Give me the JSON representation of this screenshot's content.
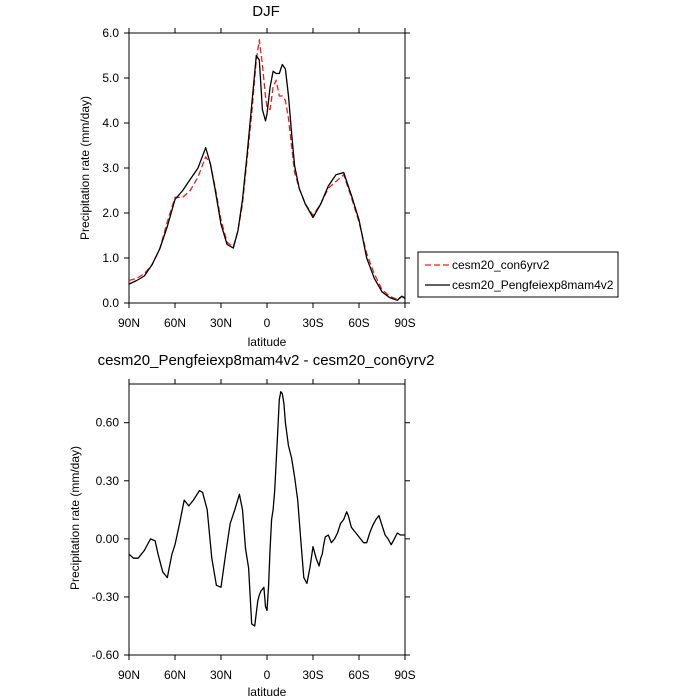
{
  "chart_data": [
    {
      "type": "line",
      "title": "DJF",
      "xlabel": "latitude",
      "ylabel": "Precipitation rate (mm/day)",
      "xlim": [
        90,
        -90
      ],
      "ylim": [
        0,
        6
      ],
      "x_ticks": [
        90,
        60,
        30,
        0,
        -30,
        -60,
        -90
      ],
      "x_tick_labels": [
        "90N",
        "60N",
        "30N",
        "0",
        "30S",
        "60S",
        "90S"
      ],
      "y_ticks": [
        0,
        1,
        2,
        3,
        4,
        5,
        6
      ],
      "y_tick_labels": [
        "0.0",
        "1.0",
        "2.0",
        "3.0",
        "4.0",
        "5.0",
        "6.0"
      ],
      "grid": false,
      "legend_position": "right",
      "series": [
        {
          "name": "cesm20_con6yrv2",
          "color": "#e8201c",
          "dash": "dashed",
          "x": [
            90,
            85,
            80,
            75,
            70,
            65,
            60,
            55,
            50,
            45,
            40,
            37,
            34,
            30,
            26,
            22,
            19,
            16,
            13,
            10,
            7,
            5,
            3,
            1,
            0,
            -2,
            -4,
            -6,
            -8,
            -10,
            -12,
            -14,
            -16,
            -18,
            -21,
            -25,
            -30,
            -35,
            -40,
            -45,
            -50,
            -55,
            -60,
            -65,
            -70,
            -75,
            -80,
            -85,
            -88,
            -90
          ],
          "y": [
            0.5,
            0.55,
            0.65,
            0.85,
            1.2,
            1.8,
            2.35,
            2.35,
            2.5,
            2.8,
            3.25,
            3.1,
            2.6,
            1.85,
            1.35,
            1.25,
            1.6,
            2.2,
            3.2,
            4.2,
            5.4,
            5.85,
            5.3,
            4.6,
            4.35,
            4.3,
            4.8,
            4.95,
            4.6,
            4.6,
            4.5,
            4.1,
            3.5,
            2.9,
            2.55,
            2.2,
            1.95,
            2.2,
            2.55,
            2.7,
            2.85,
            2.35,
            1.8,
            1.1,
            0.65,
            0.3,
            0.15,
            0.08,
            0.15,
            0.12
          ]
        },
        {
          "name": "cesm20_Pengfeiexp8mam4v2",
          "color": "#000000",
          "dash": "solid",
          "x": [
            90,
            85,
            80,
            75,
            70,
            65,
            60,
            55,
            50,
            45,
            40,
            37,
            34,
            30,
            26,
            22,
            19,
            16,
            13,
            10,
            7,
            5,
            3,
            1,
            0,
            -2,
            -4,
            -6,
            -8,
            -10,
            -12,
            -14,
            -16,
            -18,
            -21,
            -25,
            -30,
            -35,
            -40,
            -45,
            -50,
            -55,
            -60,
            -65,
            -70,
            -75,
            -80,
            -85,
            -88,
            -90
          ],
          "y": [
            0.42,
            0.5,
            0.6,
            0.85,
            1.2,
            1.7,
            2.3,
            2.5,
            2.75,
            3.0,
            3.45,
            3.1,
            2.55,
            1.75,
            1.3,
            1.22,
            1.6,
            2.3,
            3.3,
            4.4,
            5.5,
            5.4,
            4.3,
            4.05,
            4.2,
            4.8,
            5.15,
            5.1,
            5.1,
            5.3,
            5.2,
            4.6,
            3.8,
            3.05,
            2.55,
            2.2,
            1.9,
            2.2,
            2.6,
            2.85,
            2.9,
            2.4,
            1.85,
            1.0,
            0.55,
            0.25,
            0.12,
            0.06,
            0.15,
            0.1
          ]
        }
      ]
    },
    {
      "type": "line",
      "title": "cesm20_Pengfeiexp8mam4v2 - cesm20_con6yrv2",
      "xlabel": "latitude",
      "ylabel": "Precipitation rate (mm/day)",
      "xlim": [
        90,
        -90
      ],
      "ylim": [
        -0.6,
        0.8
      ],
      "x_ticks": [
        90,
        60,
        30,
        0,
        -30,
        -60,
        -90
      ],
      "x_tick_labels": [
        "90N",
        "60N",
        "30N",
        "0",
        "30S",
        "60S",
        "90S"
      ],
      "y_ticks": [
        -0.6,
        -0.3,
        0,
        0.3,
        0.6
      ],
      "y_tick_labels": [
        "-0.60",
        "-0.30",
        "0.00",
        "0.30",
        "0.60"
      ],
      "grid": false,
      "series": [
        {
          "color": "#000000",
          "dash": "solid",
          "x": [
            90,
            87,
            84,
            80,
            76,
            73,
            71,
            68,
            65,
            62,
            60,
            57,
            54,
            51,
            48,
            44,
            42,
            39,
            36,
            33,
            30,
            27,
            24,
            21,
            18,
            16,
            14,
            12,
            10,
            8,
            6,
            5,
            4,
            2,
            1,
            0,
            -1,
            -2,
            -3,
            -4,
            -5,
            -7,
            -8,
            -9,
            -10,
            -11,
            -12,
            -14,
            -16,
            -18,
            -20,
            -22,
            -24,
            -26,
            -28,
            -30,
            -32,
            -34,
            -35,
            -36,
            -37,
            -38,
            -40,
            -42,
            -44,
            -46,
            -48,
            -50,
            -52,
            -53,
            -55,
            -57,
            -59,
            -61,
            -63,
            -65,
            -67,
            -69,
            -71,
            -73,
            -75,
            -77,
            -79,
            -81,
            -83,
            -85,
            -87,
            -89,
            -90
          ],
          "y": [
            -0.08,
            -0.1,
            -0.1,
            -0.06,
            0.0,
            -0.01,
            -0.08,
            -0.17,
            -0.2,
            -0.08,
            -0.03,
            0.08,
            0.2,
            0.17,
            0.2,
            0.25,
            0.24,
            0.15,
            -0.1,
            -0.24,
            -0.25,
            -0.08,
            0.08,
            0.15,
            0.23,
            0.15,
            -0.05,
            -0.15,
            -0.44,
            -0.45,
            -0.32,
            -0.29,
            -0.27,
            -0.25,
            -0.35,
            -0.37,
            -0.25,
            -0.05,
            0.1,
            0.15,
            0.25,
            0.55,
            0.72,
            0.76,
            0.75,
            0.7,
            0.6,
            0.48,
            0.42,
            0.32,
            0.2,
            0.0,
            -0.2,
            -0.23,
            -0.15,
            -0.04,
            -0.1,
            -0.14,
            -0.1,
            -0.08,
            -0.03,
            0.01,
            0.02,
            -0.02,
            0.0,
            0.03,
            0.08,
            0.1,
            0.14,
            0.12,
            0.06,
            0.04,
            0.02,
            0.0,
            -0.02,
            -0.02,
            0.03,
            0.07,
            0.1,
            0.12,
            0.07,
            0.02,
            0.0,
            -0.03,
            0.0,
            0.03,
            0.02,
            0.02,
            0.02
          ]
        }
      ]
    }
  ]
}
